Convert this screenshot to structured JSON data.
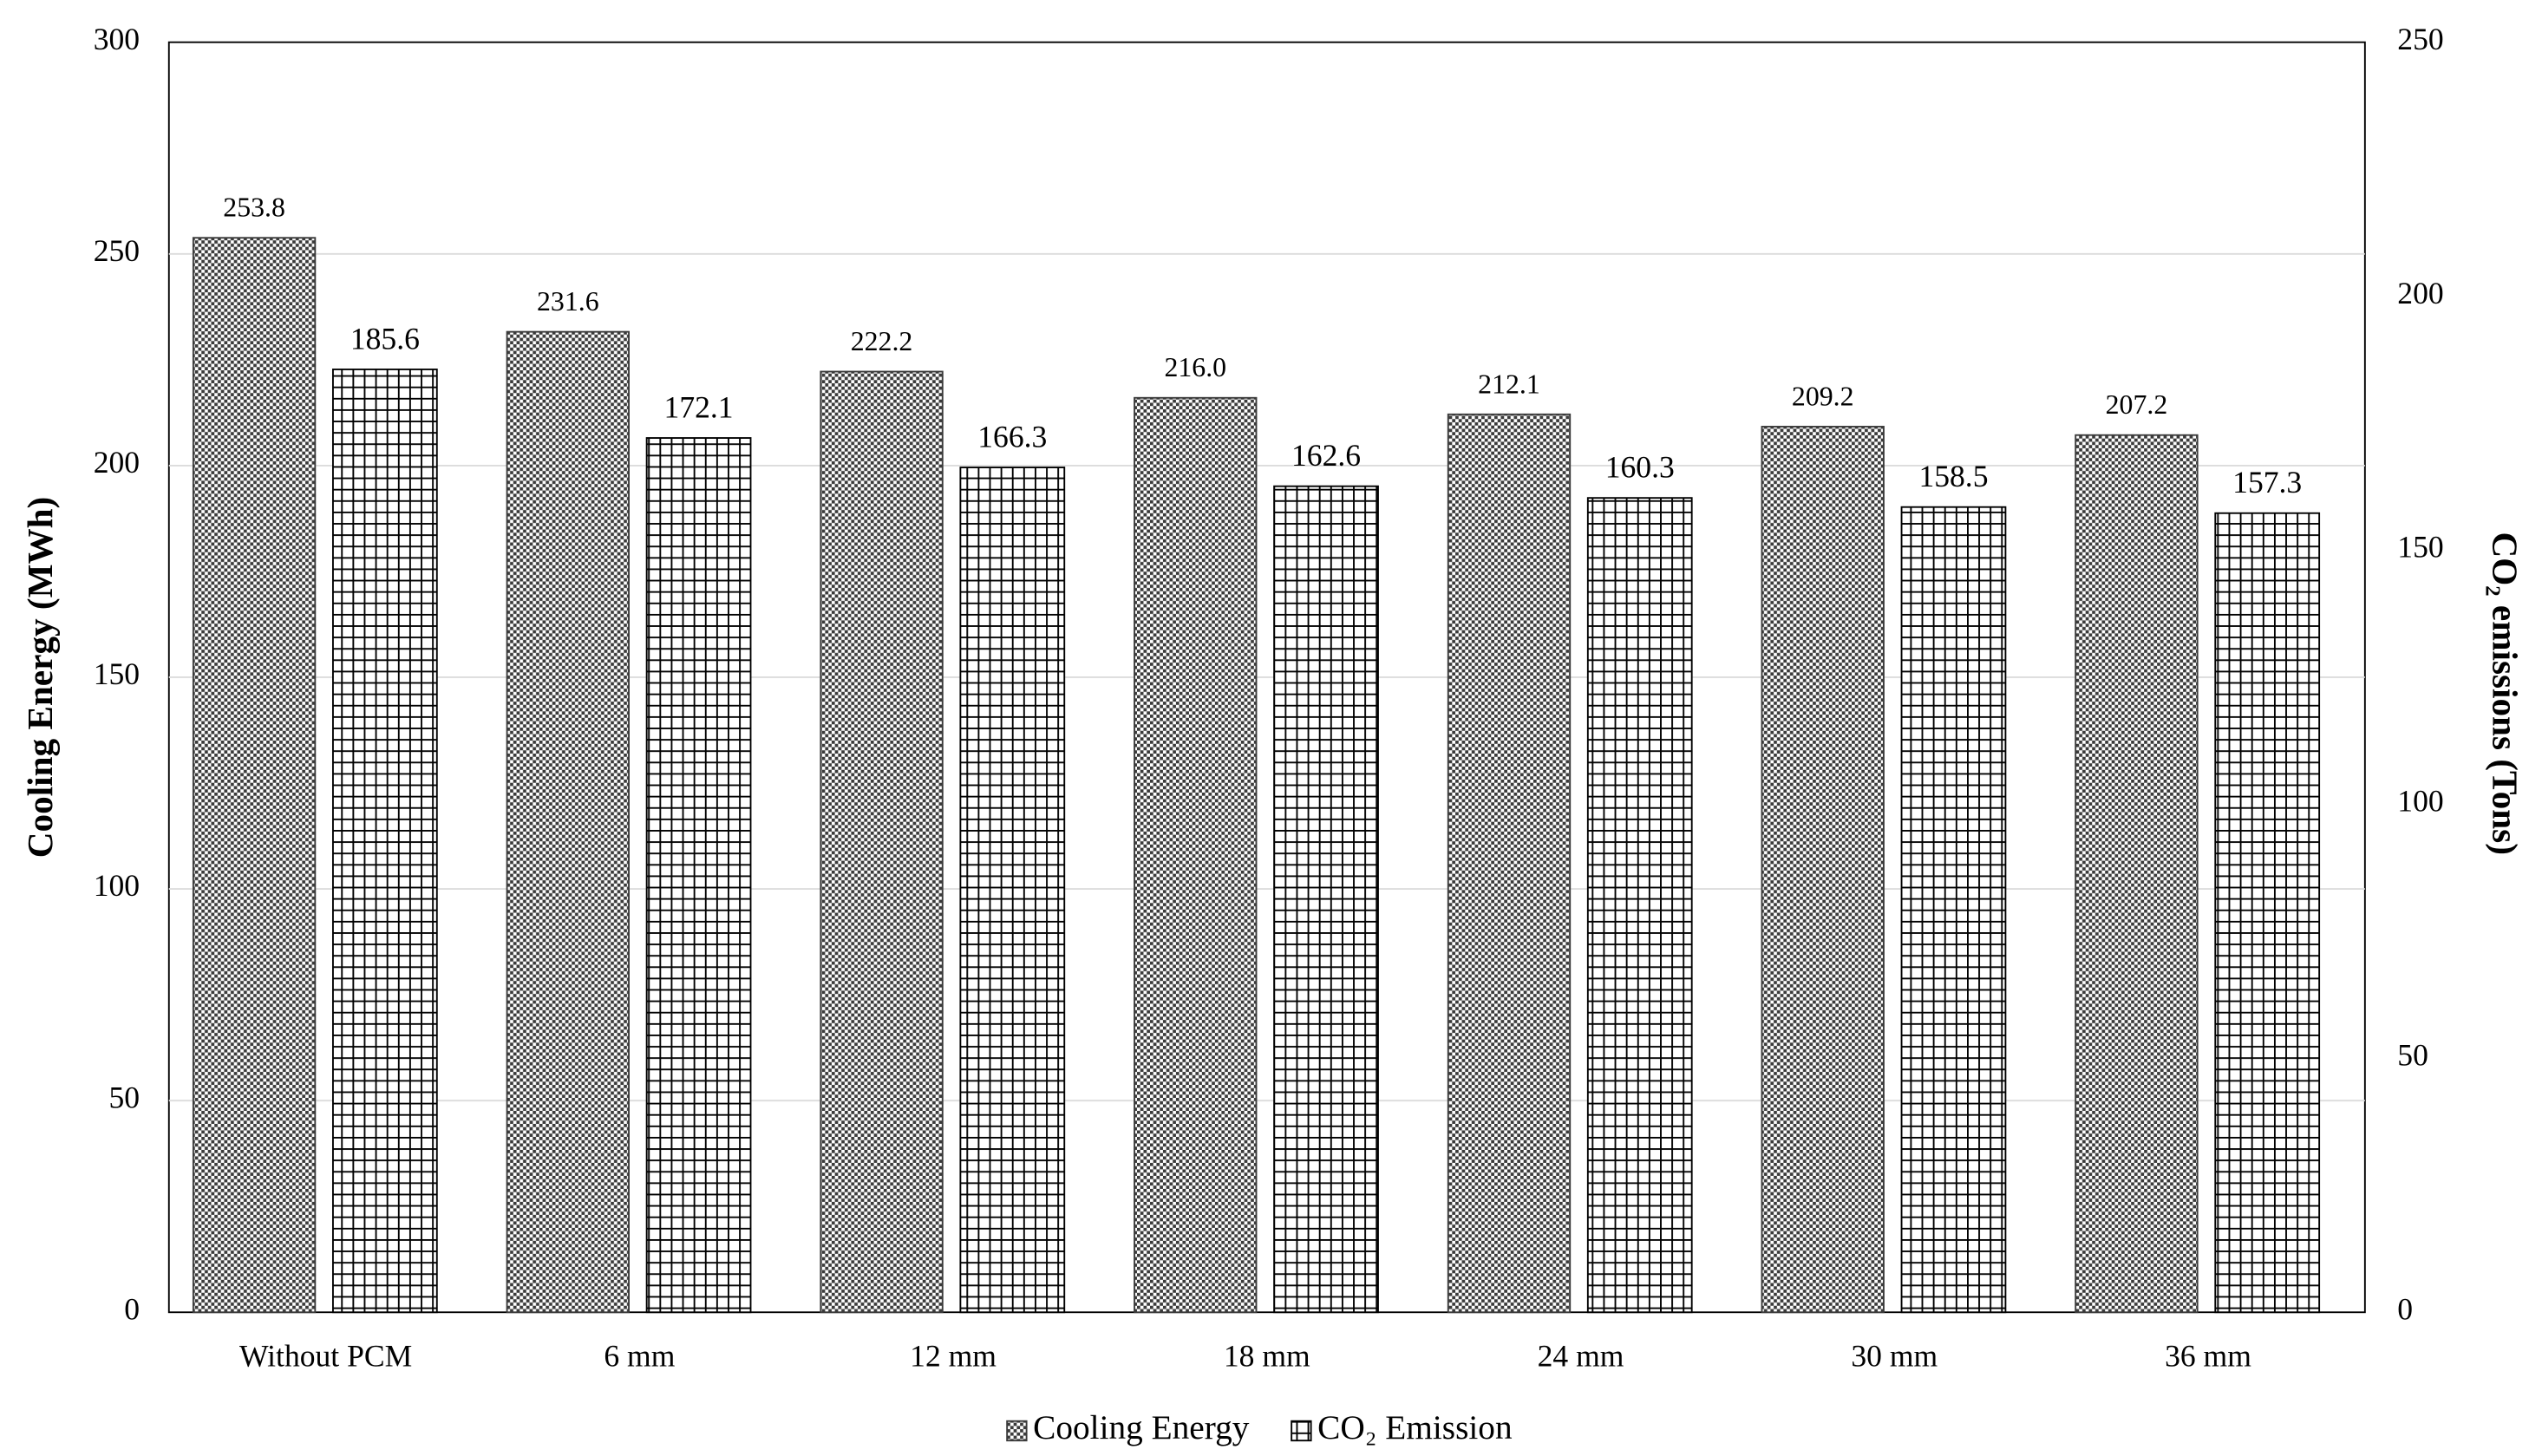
{
  "chart_data": {
    "type": "bar",
    "categories": [
      "Without PCM",
      "6 mm",
      "12 mm",
      "18 mm",
      "24 mm",
      "30 mm",
      "36 mm"
    ],
    "y_label": "Cooling Energy  (MWh)",
    "y2_label": "CO₂ emissions (Tons)",
    "ylim": [
      0,
      300
    ],
    "yticks": [
      0,
      50,
      100,
      150,
      200,
      250,
      300
    ],
    "y2lim": [
      0,
      250
    ],
    "y2ticks": [
      0,
      50,
      100,
      150,
      200,
      250
    ],
    "grid": true,
    "legend": "bottom",
    "series": [
      {
        "name": "Cooling Energy",
        "color": "#3a3a3a",
        "values": [
          253.8,
          231.6,
          222.2,
          216.0,
          212.1,
          209.2,
          207.2
        ],
        "value_labels": [
          "253.8",
          "231.6",
          "222.2",
          "216.0",
          "212.1",
          "209.2",
          "207.2"
        ]
      },
      {
        "name": "CO₂ Emission",
        "color": "#000000",
        "axis": "y2",
        "values": [
          185.6,
          172.1,
          166.3,
          162.6,
          160.3,
          158.5,
          157.3
        ]
      }
    ]
  }
}
